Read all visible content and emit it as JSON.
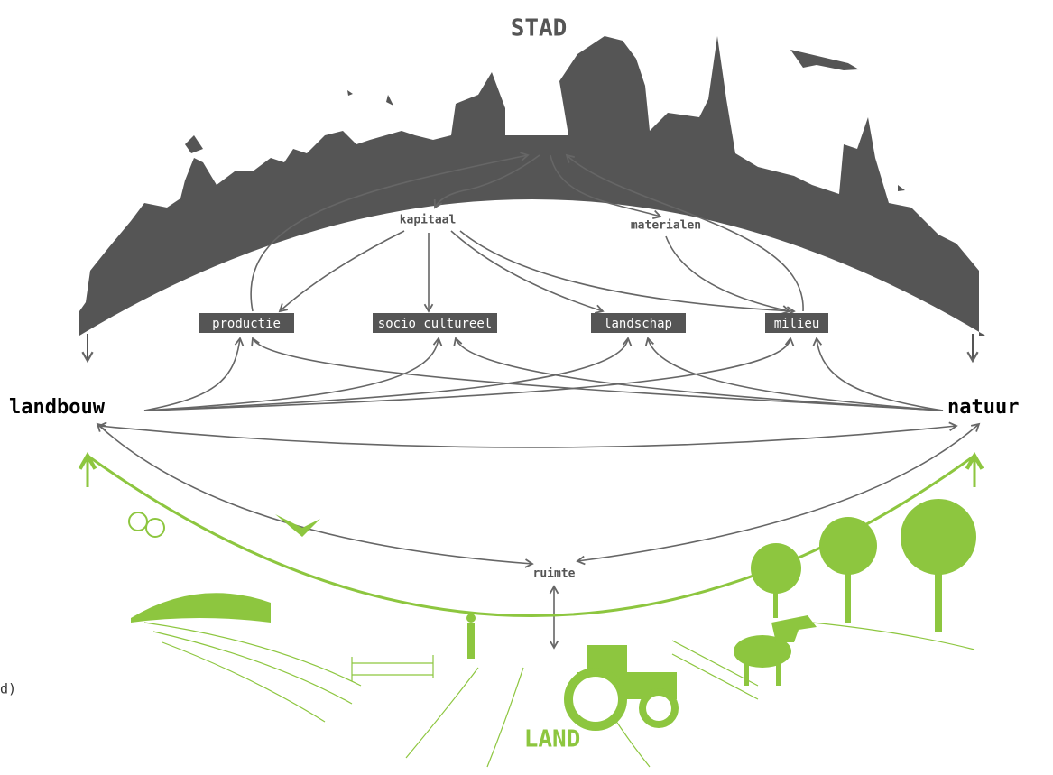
{
  "title_top": "STAD",
  "title_bottom": "LAND",
  "left_node": "landbouw",
  "right_node": "natuur",
  "flows": {
    "capital": "kapitaal",
    "materials": "materialen",
    "space": "ruimte"
  },
  "boxes": [
    "productie",
    "socio cultureel",
    "landschap",
    "milieu"
  ],
  "edge_fragment": "d)"
}
